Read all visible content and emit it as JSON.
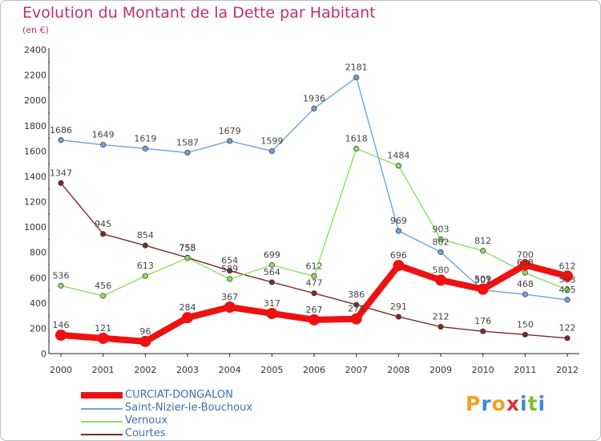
{
  "title": "Evolution du Montant de la Dette par Habitant",
  "subtitle": "(en €)",
  "logo": {
    "letters": [
      "P",
      "r",
      "o",
      "x",
      "i",
      "t",
      "i"
    ],
    "colors": [
      "#f0a020",
      "#3a8ad8",
      "#f0a020",
      "#e03030",
      "#3a8ad8",
      "#80c030",
      "#3a8ad8"
    ]
  },
  "chart_data": {
    "type": "line",
    "x": [
      "2000",
      "2001",
      "2002",
      "2003",
      "2004",
      "2005",
      "2006",
      "2007",
      "2008",
      "2009",
      "2010",
      "2011",
      "2012"
    ],
    "ylim": [
      0,
      2400
    ],
    "yticks": [
      "0",
      "200",
      "400",
      "600",
      "800",
      "1000",
      "1200",
      "1400",
      "1600",
      "1800",
      "2000",
      "2200",
      "2400"
    ],
    "grid": false,
    "legend_position": "bottom-left",
    "series": [
      {
        "name": "CURCIAT-DONGALON",
        "values": [
          146,
          121,
          96,
          284,
          367,
          317,
          267,
          274,
          696,
          580,
          509,
          700,
          612
        ],
        "labels": [
          "146",
          "121",
          "96",
          "284",
          "367",
          "317",
          "267",
          "274",
          "696",
          "580",
          "509",
          "700",
          "612"
        ],
        "color": "#ee1111",
        "width": 8
      },
      {
        "name": "Saint-Nizier-le-Bouchoux",
        "values": [
          1686,
          1649,
          1619,
          1587,
          1679,
          1599,
          1936,
          2181,
          969,
          802,
          501,
          468,
          425
        ],
        "labels": [
          "1686",
          "1649",
          "1619",
          "1587",
          "1679",
          "1599",
          "1936",
          "2181",
          "969",
          "802",
          "501",
          "468",
          "425"
        ],
        "color": "#6fa3d6",
        "width": 1.4
      },
      {
        "name": "Vernoux",
        "values": [
          536,
          456,
          613,
          755,
          589,
          699,
          612,
          1618,
          1484,
          903,
          812,
          638,
          503
        ],
        "labels": [
          "536",
          "456",
          "613",
          "755",
          "589",
          "699",
          "612",
          "1618",
          "1484",
          "903",
          "812",
          "638",
          "503"
        ],
        "color": "#90dd60",
        "width": 1.4
      },
      {
        "name": "Courtes",
        "values": [
          1347,
          945,
          854,
          758,
          654,
          564,
          477,
          386,
          291,
          212,
          176,
          150,
          122
        ],
        "labels": [
          "1347",
          "945",
          "854",
          "758",
          "654",
          "564",
          "477",
          "386",
          "291",
          "212",
          "176",
          "150",
          "122"
        ],
        "color": "#7a2a2a",
        "width": 1.4
      }
    ]
  }
}
